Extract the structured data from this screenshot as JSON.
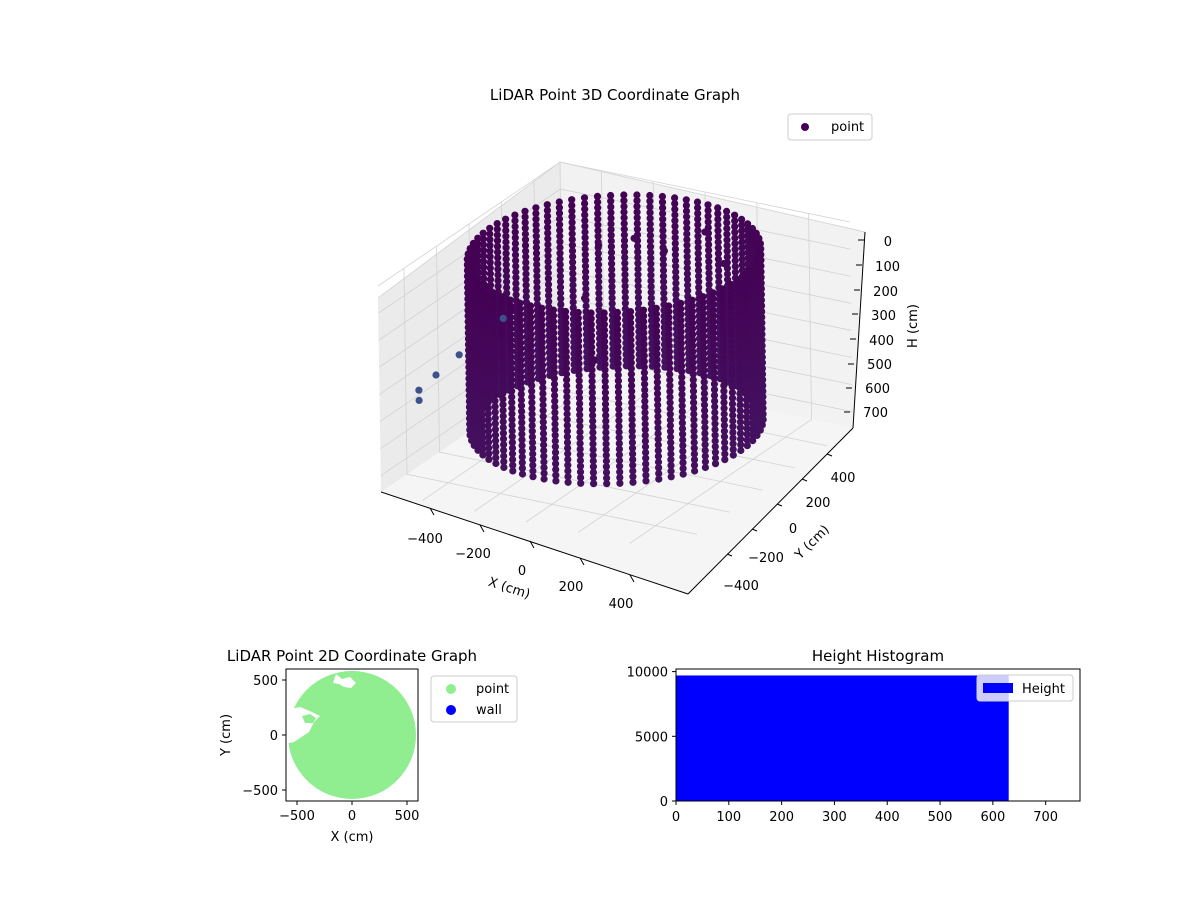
{
  "chart_data": [
    {
      "type": "scatter",
      "title": "LiDAR Point 3D Coordinate Graph",
      "projection": "3d",
      "xlabel": "X (cm)",
      "ylabel": "Y (cm)",
      "zlabel": "H (cm)",
      "xticks": [
        "−400",
        "−200",
        "0",
        "200",
        "400"
      ],
      "yticks": [
        "400",
        "200",
        "0",
        "−200",
        "−400"
      ],
      "zticks": [
        "0",
        "100",
        "200",
        "300",
        "400",
        "500",
        "600",
        "700"
      ],
      "xlim": [
        -560,
        560
      ],
      "ylim": [
        -560,
        560
      ],
      "zlim": [
        0,
        760
      ],
      "z_inverted": true,
      "legend": {
        "entries": [
          "point"
        ],
        "location": "upper right"
      },
      "series": [
        {
          "name": "point",
          "color": "#440154",
          "colormap": "viridis",
          "shape": "cylindrical wall",
          "radius": 480,
          "height_range": [
            0,
            630
          ]
        }
      ]
    },
    {
      "type": "scatter",
      "title": "LiDAR Point 2D Coordinate Graph",
      "xlabel": "X (cm)",
      "ylabel": "Y (cm)",
      "xticks": [
        "−500",
        "0",
        "500"
      ],
      "yticks": [
        "500",
        "0",
        "−500"
      ],
      "xlim": [
        -600,
        600
      ],
      "ylim": [
        -600,
        600
      ],
      "legend": {
        "entries": [
          "point",
          "wall"
        ],
        "location": "outside right"
      },
      "series": [
        {
          "name": "point",
          "color": "#90ee90",
          "shape": "filled disc",
          "center": [
            0,
            0
          ],
          "radius": 580
        },
        {
          "name": "wall",
          "color": "#0000ff"
        }
      ]
    },
    {
      "type": "bar",
      "title": "Height Histogram",
      "xticks": [
        "0",
        "100",
        "200",
        "300",
        "400",
        "500",
        "600",
        "700"
      ],
      "yticks": [
        "0",
        "5000",
        "10000"
      ],
      "xlim": [
        0,
        765
      ],
      "ylim": [
        0,
        10200
      ],
      "legend": {
        "entries": [
          "Height"
        ],
        "location": "upper right"
      },
      "series": [
        {
          "name": "Height",
          "color": "#0000ff",
          "bins": [
            [
              0,
              630,
              9700
            ]
          ]
        }
      ]
    }
  ]
}
